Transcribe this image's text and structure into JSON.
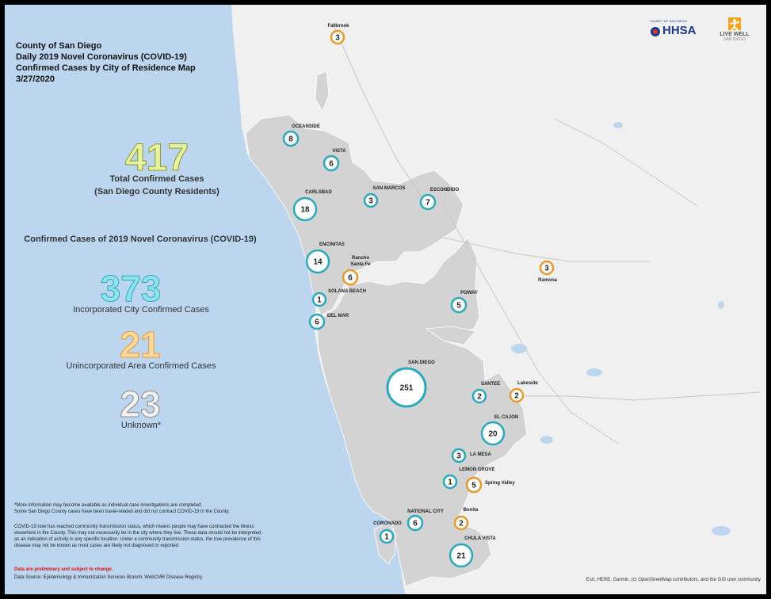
{
  "title": {
    "line1": "County of San Diego",
    "line2": "Daily 2019 Novel Coronavirus (COVID-19)",
    "line3": "Confirmed Cases by City of Residence Map",
    "date": "3/27/2020"
  },
  "summary": {
    "total_value": "417",
    "total_label_1": "Total Confirmed Cases",
    "total_label_2": "(San Diego County Residents)",
    "section_heading": "Confirmed Cases of 2019 Novel Coronavirus (COVID-19)",
    "incorporated_value": "373",
    "incorporated_label": "Incorporated City Confirmed Cases",
    "unincorporated_value": "21",
    "unincorporated_label": "Unincorporated Area Confirmed Cases",
    "unknown_value": "23",
    "unknown_label": "Unknown*"
  },
  "footnotes": {
    "note1a": "*More information may become available as individual case investigations are completed.",
    "note1b": "Some San Diego County cases have been travel-related and did not contract COVID-19 in the County.",
    "note2": "COVID-19 now has reached community transmission status, which means people may have contracted the illness elsewhere in the County. This may not necessarily be in the city where they live. These data should not be interpreted as an indication of activity in any specific location. Under a community transmission status, the true prevalence of this disease may not be known as most cases are likely not diagnosed or reported.",
    "preliminary": "Data are preliminary and subject to change.",
    "source": "Data Source: Epidemiology & Immunization Services Branch, WebCMR Disease Registry"
  },
  "attribution": "Esri, HERE, Garmin, (c) OpenStreetMap contributors, and the GIS user community",
  "logos": {
    "hhsa": "HHSA",
    "hhsa_small": "COUNTY OF SAN DIEGO",
    "livewell_1": "LIVE WELL",
    "livewell_2": "SAN DIEGO"
  },
  "colors": {
    "ocean": "#bcd6ef",
    "land": "#f0f0f0",
    "city_fill": "#d3d3d3",
    "incorporated_ring": "#2aa9bd",
    "unincorporated_ring": "#e59a2a"
  },
  "markers": [
    {
      "name": "Fallbrook",
      "count": 3,
      "type": "unincorporated"
    },
    {
      "name": "OCEANSIDE",
      "count": 8,
      "type": "incorporated"
    },
    {
      "name": "VISTA",
      "count": 6,
      "type": "incorporated"
    },
    {
      "name": "CARLSBAD",
      "count": 18,
      "type": "incorporated"
    },
    {
      "name": "SAN MARCOS",
      "count": 3,
      "type": "incorporated"
    },
    {
      "name": "ESCONDIDO",
      "count": 7,
      "type": "incorporated"
    },
    {
      "name": "ENCINITAS",
      "count": 14,
      "type": "incorporated"
    },
    {
      "name": "Rancho Santa Fe",
      "count": 6,
      "type": "unincorporated"
    },
    {
      "name": "Ramona",
      "count": 3,
      "type": "unincorporated"
    },
    {
      "name": "SOLANA BEACH",
      "count": 1,
      "type": "incorporated"
    },
    {
      "name": "DEL MAR",
      "count": 6,
      "type": "incorporated"
    },
    {
      "name": "POWAY",
      "count": 5,
      "type": "incorporated"
    },
    {
      "name": "SAN DIEGO",
      "count": 251,
      "type": "incorporated"
    },
    {
      "name": "SANTEE",
      "count": 2,
      "type": "incorporated"
    },
    {
      "name": "Lakeside",
      "count": 2,
      "type": "unincorporated"
    },
    {
      "name": "EL CAJON",
      "count": 20,
      "type": "incorporated"
    },
    {
      "name": "LA MESA",
      "count": 3,
      "type": "incorporated"
    },
    {
      "name": "LEMON GROVE",
      "count": 1,
      "type": "incorporated"
    },
    {
      "name": "Spring Valley",
      "count": 5,
      "type": "unincorporated"
    },
    {
      "name": "Bonita",
      "count": 2,
      "type": "unincorporated"
    },
    {
      "name": "NATIONAL CITY",
      "count": 6,
      "type": "incorporated"
    },
    {
      "name": "CORONADO",
      "count": 1,
      "type": "incorporated"
    },
    {
      "name": "CHULA VISTA",
      "count": 21,
      "type": "incorporated"
    }
  ]
}
